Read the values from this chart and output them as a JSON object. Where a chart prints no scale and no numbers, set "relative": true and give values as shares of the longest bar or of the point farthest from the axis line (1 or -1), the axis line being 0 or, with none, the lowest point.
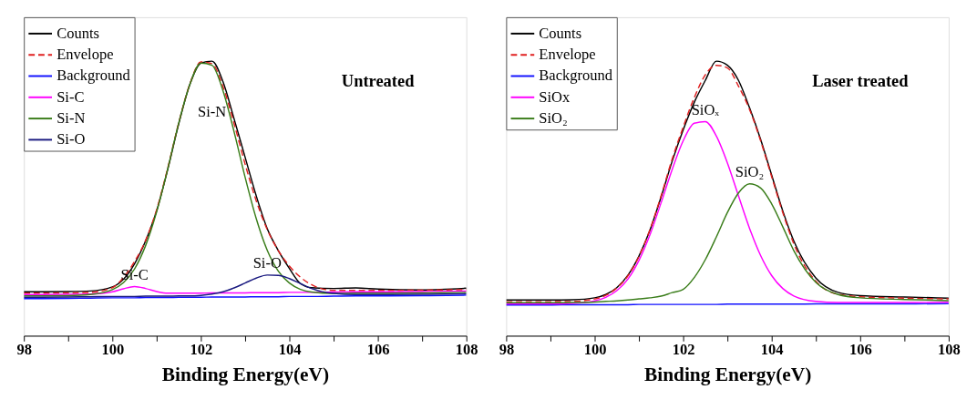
{
  "chart_data": [
    {
      "type": "line",
      "relative": true,
      "title": "Untreated",
      "xlabel": "Binding Energy(eV)",
      "xlim": [
        98,
        108
      ],
      "xticks": [
        98,
        {
          "value": 99,
          "label": null
        },
        100,
        {
          "value": 101,
          "label": null
        },
        102,
        {
          "value": 103,
          "label": null
        },
        104,
        {
          "value": 105,
          "label": null
        },
        106,
        {
          "value": 107,
          "label": null
        },
        108
      ],
      "grid": false,
      "legend": "top left",
      "marker": "none",
      "line_style": "solid",
      "x": [
        98,
        99,
        99.5,
        100,
        100.25,
        100.5,
        100.75,
        101,
        101.25,
        101.5,
        101.75,
        102,
        102.25,
        102.5,
        102.75,
        103,
        103.25,
        103.5,
        103.75,
        104,
        104.25,
        104.5,
        105,
        105.5,
        106,
        107,
        108
      ],
      "series": [
        {
          "name": "Counts",
          "color": "#000000",
          "values": [
            0.16,
            0.161,
            0.163,
            0.178,
            0.206,
            0.262,
            0.345,
            0.455,
            0.605,
            0.772,
            0.915,
            0.993,
            1.0,
            0.925,
            0.79,
            0.65,
            0.51,
            0.39,
            0.31,
            0.245,
            0.19,
            0.175,
            0.172,
            0.174,
            0.17,
            0.167,
            0.173
          ]
        },
        {
          "name": "Envelope",
          "color": "#e02020",
          "line_style": "dashed",
          "values": [
            0.155,
            0.156,
            0.158,
            0.175,
            0.212,
            0.27,
            0.347,
            0.459,
            0.61,
            0.776,
            0.916,
            0.997,
            0.991,
            0.907,
            0.773,
            0.625,
            0.492,
            0.387,
            0.31,
            0.254,
            0.213,
            0.186,
            0.165,
            0.165,
            0.165,
            0.166,
            0.168
          ]
        },
        {
          "name": "Background",
          "color": "#1010ff",
          "values": [
            0.135,
            0.136,
            0.137,
            0.138,
            0.138,
            0.138,
            0.139,
            0.139,
            0.139,
            0.14,
            0.14,
            0.14,
            0.141,
            0.141,
            0.141,
            0.141,
            0.142,
            0.142,
            0.142,
            0.143,
            0.143,
            0.143,
            0.144,
            0.145,
            0.145,
            0.146,
            0.148
          ]
        },
        {
          "name": "Si-C",
          "color": "#ff00ff",
          "values": [
            0.15,
            0.151,
            0.152,
            0.16,
            0.171,
            0.179,
            0.172,
            0.161,
            0.155,
            0.155,
            0.155,
            0.155,
            0.156,
            0.156,
            0.156,
            0.156,
            0.157,
            0.157,
            0.157,
            0.158,
            0.158,
            0.158,
            0.159,
            0.16,
            0.16,
            0.161,
            0.163
          ]
        },
        {
          "name": "Si-N",
          "color": "#3a7d1a",
          "values": [
            0.145,
            0.146,
            0.15,
            0.168,
            0.193,
            0.243,
            0.328,
            0.451,
            0.607,
            0.775,
            0.915,
            0.993,
            0.985,
            0.892,
            0.743,
            0.577,
            0.427,
            0.311,
            0.235,
            0.192,
            0.169,
            0.159,
            0.154,
            0.155,
            0.155,
            0.156,
            0.158
          ]
        },
        {
          "name": "Si-O",
          "color": "#1a1a80",
          "values": [
            0.14,
            0.141,
            0.142,
            0.143,
            0.143,
            0.143,
            0.144,
            0.144,
            0.144,
            0.145,
            0.145,
            0.147,
            0.152,
            0.16,
            0.174,
            0.192,
            0.21,
            0.221,
            0.22,
            0.208,
            0.19,
            0.172,
            0.154,
            0.15,
            0.15,
            0.151,
            0.153
          ]
        }
      ],
      "annotations": [
        {
          "text": "Si-N",
          "x": 102.25,
          "y": 0.985
        },
        {
          "text": "Si-C",
          "x": 100.5,
          "y": 0.179
        },
        {
          "text": "Si-O",
          "x": 103.5,
          "y": 0.221
        }
      ]
    },
    {
      "type": "line",
      "relative": true,
      "title": "Laser treated",
      "xlabel": "Binding Energy(eV)",
      "xlim": [
        98,
        108
      ],
      "xticks": [
        98,
        {
          "value": 99,
          "label": null
        },
        100,
        {
          "value": 101,
          "label": null
        },
        102,
        {
          "value": 103,
          "label": null
        },
        104,
        {
          "value": 105,
          "label": null
        },
        106,
        {
          "value": 107,
          "label": null
        },
        108
      ],
      "grid": false,
      "legend": "top left",
      "marker": "none",
      "line_style": "solid",
      "x": [
        98,
        99,
        99.5,
        100,
        100.25,
        100.5,
        100.75,
        101,
        101.25,
        101.5,
        101.75,
        102,
        102.25,
        102.5,
        102.75,
        103,
        103.25,
        103.5,
        103.75,
        104,
        104.25,
        104.5,
        105,
        105.5,
        106,
        107,
        108
      ],
      "series": [
        {
          "name": "Counts",
          "color": "#000000",
          "values": [
            0.13,
            0.13,
            0.131,
            0.138,
            0.15,
            0.175,
            0.22,
            0.29,
            0.385,
            0.505,
            0.635,
            0.75,
            0.85,
            0.93,
            1.0,
            0.985,
            0.93,
            0.83,
            0.715,
            0.585,
            0.455,
            0.345,
            0.21,
            0.158,
            0.146,
            0.141,
            0.137
          ]
        },
        {
          "name": "Envelope",
          "color": "#e02020",
          "line_style": "dashed",
          "values": [
            0.124,
            0.124,
            0.125,
            0.134,
            0.147,
            0.174,
            0.218,
            0.289,
            0.387,
            0.509,
            0.643,
            0.76,
            0.867,
            0.95,
            0.985,
            0.975,
            0.909,
            0.824,
            0.71,
            0.579,
            0.449,
            0.335,
            0.198,
            0.151,
            0.142,
            0.137,
            0.134
          ]
        },
        {
          "name": "Background",
          "color": "#1010ff",
          "values": [
            0.112,
            0.112,
            0.113,
            0.113,
            0.113,
            0.113,
            0.113,
            0.114,
            0.114,
            0.114,
            0.114,
            0.114,
            0.114,
            0.114,
            0.114,
            0.115,
            0.115,
            0.115,
            0.115,
            0.115,
            0.115,
            0.115,
            0.116,
            0.116,
            0.116,
            0.116,
            0.117
          ]
        },
        {
          "name": "SiOx",
          "color": "#ff00ff",
          "values": [
            0.116,
            0.116,
            0.118,
            0.127,
            0.14,
            0.164,
            0.206,
            0.274,
            0.368,
            0.484,
            0.605,
            0.71,
            0.774,
            0.78,
            0.727,
            0.629,
            0.509,
            0.391,
            0.292,
            0.219,
            0.172,
            0.145,
            0.125,
            0.121,
            0.121,
            0.121,
            0.122
          ]
        },
        {
          "name": "SiO₂",
          "color": "#3a7d1a",
          "values": [
            0.12,
            0.12,
            0.121,
            0.123,
            0.125,
            0.127,
            0.13,
            0.134,
            0.138,
            0.144,
            0.157,
            0.169,
            0.212,
            0.277,
            0.36,
            0.449,
            0.52,
            0.553,
            0.538,
            0.48,
            0.397,
            0.31,
            0.194,
            0.15,
            0.138,
            0.132,
            0.128
          ]
        }
      ],
      "annotations": [
        {
          "text": "SiOₓ",
          "x": 102.5,
          "y": 0.78
        },
        {
          "text": "SiO₂",
          "x": 103.5,
          "y": 0.553
        }
      ]
    }
  ]
}
